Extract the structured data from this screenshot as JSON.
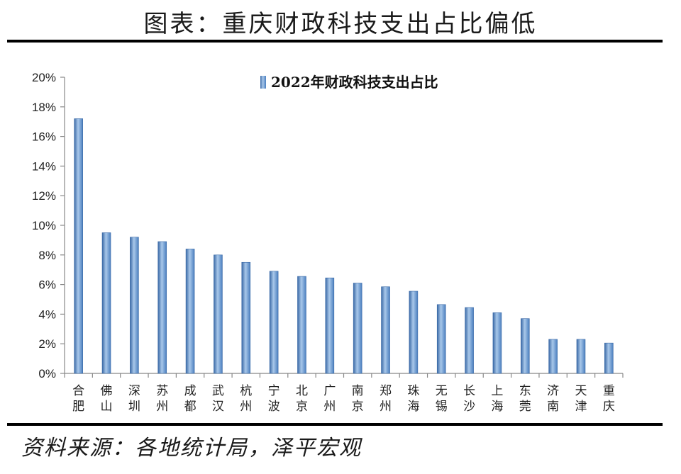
{
  "title": "图表：重庆财政科技支出占比偏低",
  "source": "资料来源：各地统计局，泽平宏观",
  "colors": {
    "bar": "#5b8fcb",
    "bar_dark": "#3a69a6",
    "bar_light": "#a9c8ea"
  },
  "chart_data": {
    "type": "bar",
    "title": "",
    "xlabel": "",
    "ylabel": "",
    "categories": [
      "合肥",
      "佛山",
      "深圳",
      "苏州",
      "成都",
      "武汉",
      "杭州",
      "宁波",
      "北京",
      "广州",
      "南京",
      "郑州",
      "珠海",
      "无锡",
      "长沙",
      "上海",
      "东莞",
      "济南",
      "天津",
      "重庆"
    ],
    "series": [
      {
        "name": "2022年财政科技支出占比",
        "values": [
          17.2,
          9.5,
          9.2,
          8.9,
          8.4,
          8.0,
          7.5,
          6.9,
          6.55,
          6.45,
          6.1,
          5.85,
          5.55,
          4.65,
          4.45,
          4.1,
          3.7,
          2.3,
          2.3,
          2.05
        ]
      }
    ],
    "ylim": [
      0,
      20
    ],
    "yticks": [
      "0%",
      "2%",
      "4%",
      "6%",
      "8%",
      "10%",
      "12%",
      "14%",
      "16%",
      "18%",
      "20%"
    ],
    "legend_position": "top-center",
    "grid": false
  }
}
